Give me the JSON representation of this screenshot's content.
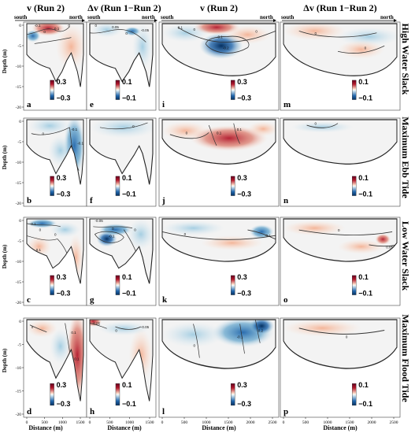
{
  "column_headers": [
    "v (Run 2)",
    "Δv (Run 1−Run 2)",
    "v (Run 2)",
    "Δv (Run 1−Run 2)"
  ],
  "direction": {
    "south": "south",
    "north": "north"
  },
  "row_titles": [
    "High Water Slack",
    "Maximum Ebb Tide",
    "Low Water Slack",
    "Maximum Flood Tide"
  ],
  "y_axis": {
    "label": "Depth (m)",
    "ticks": [
      "0",
      "-5",
      "-10",
      "-15",
      "-20"
    ]
  },
  "x_axis": {
    "label": "Distance (m)",
    "ticks_left": [
      "0",
      "500",
      "1000",
      "1500"
    ],
    "ticks_right": [
      "0",
      "500",
      "1000",
      "1500",
      "2000",
      "2500"
    ]
  },
  "colorbars": {
    "v": {
      "max": "0.3",
      "min": "−0.3"
    },
    "dv": {
      "max": "0.1",
      "min": "−0.1"
    }
  },
  "panel_letters": [
    "a",
    "e",
    "i",
    "m",
    "b",
    "f",
    "j",
    "n",
    "c",
    "g",
    "k",
    "o",
    "d",
    "h",
    "l",
    "p"
  ],
  "contour_labels": {
    "a": [
      "-0.1",
      "0",
      "0.1",
      "0"
    ],
    "e": [
      "0",
      "0.05",
      "0",
      "-0.05"
    ],
    "i": [
      "0.1",
      "0",
      "-0.1",
      "-0.2",
      "0"
    ],
    "m": [
      "0",
      "0"
    ],
    "b": [
      "0",
      "-0.1",
      "-0.1"
    ],
    "f": [
      "0"
    ],
    "j": [
      "0",
      "0.1",
      "0.1"
    ],
    "n": [
      "0"
    ],
    "c": [
      "-0.1",
      "0",
      "0",
      "0.1"
    ],
    "g": [
      "-0.05",
      "0",
      "-0.1",
      "0"
    ],
    "k": [
      "0",
      "-0.1"
    ],
    "o": [
      "0",
      "0.05"
    ],
    "d": [
      "0",
      "0.1",
      "0.1"
    ],
    "h": [
      "0.05",
      "0",
      "-0.05"
    ],
    "l": [
      "0",
      "-0.1",
      "-0.2"
    ],
    "p": [
      "0"
    ]
  },
  "colors": {
    "red": "#b2182b",
    "blue": "#2166ac",
    "white": "#ffffff"
  }
}
